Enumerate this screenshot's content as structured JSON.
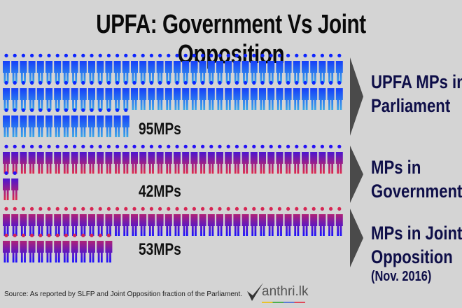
{
  "title": "UPFA: Government Vs Joint Opposition",
  "chart_data": {
    "type": "pictograph",
    "icon": "person-icon",
    "icons_per_row": 40,
    "series": [
      {
        "name": "UPFA MPs in Parliament",
        "value": 95,
        "count_label": "95MPs",
        "label_lines": [
          "UPFA MPs in",
          "Parliament"
        ],
        "gradient": [
          "#0a1cff",
          "#3aa8e8"
        ]
      },
      {
        "name": "MPs in Government",
        "value": 42,
        "count_label": "42MPs",
        "label_lines": [
          "MPs in",
          "Government"
        ],
        "gradient": [
          "#1a10ff",
          "#e0284a"
        ]
      },
      {
        "name": "MPs in Joint Opposition",
        "value": 53,
        "count_label": "53MPs",
        "label_lines": [
          "MPs in Joint",
          "Opposition"
        ],
        "sublabel": "(Nov. 2016)",
        "gradient": [
          "#e0284a",
          "#1a10ff"
        ]
      }
    ]
  },
  "source": "Source: As reported by SLFP and Joint Opposition fraction of the Parliament.",
  "logo": {
    "text": "anthri.lk",
    "brand": "Manthri.lk"
  },
  "colors": {
    "background": "#d4d4d4",
    "arrow": "#4a4a4a",
    "label": "#0e0e48"
  }
}
